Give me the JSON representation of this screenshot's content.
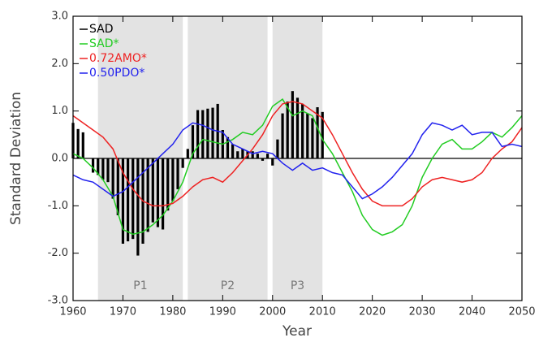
{
  "chart_data": {
    "type": "combo",
    "xlabel": "Year",
    "ylabel": "Standard Deviation",
    "xlim": [
      1960,
      2050
    ],
    "ylim": [
      -3,
      3
    ],
    "xticks": [
      1960,
      1970,
      1980,
      1990,
      2000,
      2010,
      2020,
      2030,
      2040,
      2050
    ],
    "yticks": [
      {
        "value": -3,
        "label": "-3.0"
      },
      {
        "value": -2,
        "label": "-2.0"
      },
      {
        "value": -1,
        "label": "-1.0"
      },
      {
        "value": 0,
        "label": "0.0"
      },
      {
        "value": 1,
        "label": "1.0"
      },
      {
        "value": 2,
        "label": "2.0"
      },
      {
        "value": 3,
        "label": "3.0"
      }
    ],
    "shading": [
      {
        "label": "P1",
        "range": [
          1965,
          1982
        ]
      },
      {
        "label": "P2",
        "range": [
          1983,
          1999
        ]
      },
      {
        "label": "P3",
        "range": [
          2000,
          2010
        ]
      }
    ],
    "bars": {
      "name": "SAD",
      "color": "#000000",
      "x": [
        1960,
        1961,
        1962,
        1963,
        1964,
        1965,
        1966,
        1967,
        1968,
        1969,
        1970,
        1971,
        1972,
        1973,
        1974,
        1975,
        1976,
        1977,
        1978,
        1979,
        1980,
        1981,
        1982,
        1983,
        1984,
        1985,
        1986,
        1987,
        1988,
        1989,
        1990,
        1991,
        1992,
        1993,
        1994,
        1995,
        1996,
        1997,
        1998,
        1999,
        2000,
        2001,
        2002,
        2003,
        2004,
        2005,
        2006,
        2007,
        2008,
        2009,
        2010
      ],
      "values": [
        0.75,
        0.62,
        0.55,
        0.0,
        -0.3,
        -0.35,
        -0.45,
        -0.5,
        -0.85,
        -1.2,
        -1.8,
        -1.75,
        -1.7,
        -2.05,
        -1.8,
        -1.55,
        -1.35,
        -1.45,
        -1.5,
        -1.1,
        -0.9,
        -0.65,
        -0.2,
        0.2,
        0.7,
        1.02,
        1.02,
        1.05,
        1.07,
        1.15,
        0.6,
        0.45,
        0.3,
        0.15,
        0.2,
        0.15,
        0.15,
        0.1,
        -0.05,
        0.1,
        -0.15,
        0.4,
        0.95,
        1.2,
        1.42,
        1.28,
        1.15,
        0.95,
        0.85,
        1.08,
        0.98
      ]
    },
    "x": [
      1960,
      1962,
      1964,
      1966,
      1968,
      1970,
      1972,
      1974,
      1976,
      1978,
      1980,
      1982,
      1984,
      1986,
      1988,
      1990,
      1992,
      1994,
      1996,
      1998,
      2000,
      2002,
      2004,
      2006,
      2008,
      2010,
      2012,
      2014,
      2016,
      2018,
      2020,
      2022,
      2024,
      2026,
      2028,
      2030,
      2032,
      2034,
      2036,
      2038,
      2040,
      2042,
      2044,
      2046,
      2048,
      2050
    ],
    "series": [
      {
        "name": "SAD*",
        "color": "#22cc22",
        "values": [
          0.1,
          0.0,
          -0.2,
          -0.45,
          -0.8,
          -1.5,
          -1.6,
          -1.55,
          -1.4,
          -1.2,
          -0.9,
          -0.5,
          0.1,
          0.4,
          0.35,
          0.3,
          0.4,
          0.55,
          0.5,
          0.7,
          1.1,
          1.25,
          0.9,
          1.0,
          0.9,
          0.4,
          0.1,
          -0.3,
          -0.7,
          -1.2,
          -1.5,
          -1.62,
          -1.55,
          -1.4,
          -1.0,
          -0.4,
          0.0,
          0.3,
          0.4,
          0.2,
          0.2,
          0.35,
          0.55,
          0.45,
          0.65,
          0.9
        ]
      },
      {
        "name": "0.72AMO*",
        "color": "#ee2222",
        "values": [
          0.9,
          0.75,
          0.6,
          0.45,
          0.2,
          -0.3,
          -0.65,
          -0.9,
          -1.0,
          -1.0,
          -0.95,
          -0.8,
          -0.6,
          -0.45,
          -0.4,
          -0.5,
          -0.3,
          -0.05,
          0.2,
          0.5,
          0.9,
          1.15,
          1.2,
          1.15,
          1.0,
          0.85,
          0.5,
          0.1,
          -0.3,
          -0.65,
          -0.9,
          -1.0,
          -1.0,
          -1.0,
          -0.85,
          -0.6,
          -0.45,
          -0.4,
          -0.45,
          -0.5,
          -0.45,
          -0.3,
          0.0,
          0.2,
          0.35,
          0.65
        ]
      },
      {
        "name": "0.50PDO*",
        "color": "#2222ee",
        "values": [
          -0.35,
          -0.45,
          -0.5,
          -0.65,
          -0.8,
          -0.7,
          -0.5,
          -0.3,
          -0.1,
          0.1,
          0.3,
          0.6,
          0.75,
          0.7,
          0.6,
          0.55,
          0.3,
          0.2,
          0.1,
          0.15,
          0.1,
          -0.1,
          -0.25,
          -0.1,
          -0.25,
          -0.2,
          -0.3,
          -0.35,
          -0.6,
          -0.85,
          -0.75,
          -0.6,
          -0.4,
          -0.15,
          0.1,
          0.5,
          0.75,
          0.7,
          0.6,
          0.7,
          0.5,
          0.55,
          0.55,
          0.25,
          0.3,
          0.25
        ]
      }
    ]
  }
}
